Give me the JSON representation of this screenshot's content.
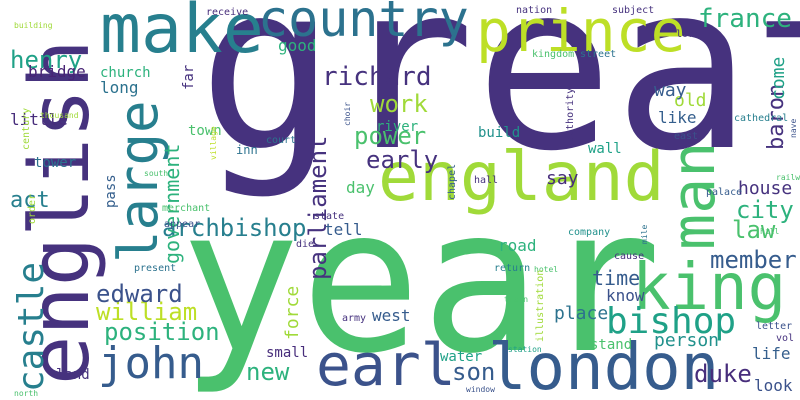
{
  "words": [
    {
      "text": "great",
      "color": "#46327e",
      "vertical": false
    },
    {
      "text": "year",
      "color": "#4ac16d",
      "vertical": false
    },
    {
      "text": "english",
      "color": "#46327e",
      "vertical": true
    },
    {
      "text": "make",
      "color": "#277f8e",
      "vertical": false
    },
    {
      "text": "country",
      "color": "#2c728e",
      "vertical": false
    },
    {
      "text": "england",
      "color": "#a0da39",
      "vertical": false
    },
    {
      "text": "london",
      "color": "#365c8d",
      "vertical": false
    },
    {
      "text": "king",
      "color": "#4ac16d",
      "vertical": false
    },
    {
      "text": "prince",
      "color": "#bddf26",
      "vertical": false
    },
    {
      "text": "man",
      "color": "#4ac16d",
      "vertical": true
    },
    {
      "text": "large",
      "color": "#277f8e",
      "vertical": true
    },
    {
      "text": "earl",
      "color": "#3b528b",
      "vertical": false
    },
    {
      "text": "bishop",
      "color": "#1fa187",
      "vertical": false
    },
    {
      "text": "castle",
      "color": "#277f8e",
      "vertical": true
    },
    {
      "text": "john",
      "color": "#365c8d",
      "vertical": false
    },
    {
      "text": "henry",
      "color": "#1fa187",
      "vertical": false
    },
    {
      "text": "france",
      "color": "#2db27d",
      "vertical": false
    },
    {
      "text": "richard",
      "color": "#46327e",
      "vertical": false
    },
    {
      "text": "archbishop",
      "color": "#277f8e",
      "vertical": false
    },
    {
      "text": "parliament",
      "color": "#46327e",
      "vertical": true
    },
    {
      "text": "government",
      "color": "#2db27d",
      "vertical": true
    },
    {
      "text": "william",
      "color": "#bddf26",
      "vertical": false
    },
    {
      "text": "edward",
      "color": "#3b528b",
      "vertical": false
    },
    {
      "text": "position",
      "color": "#2db27d",
      "vertical": false
    },
    {
      "text": "work",
      "color": "#a0da39",
      "vertical": false
    },
    {
      "text": "power",
      "color": "#4ac16d",
      "vertical": false
    },
    {
      "text": "early",
      "color": "#46327e",
      "vertical": false
    },
    {
      "text": "city",
      "color": "#2db27d",
      "vertical": false
    },
    {
      "text": "law",
      "color": "#4ac16d",
      "vertical": false
    },
    {
      "text": "baron",
      "color": "#46327e",
      "vertical": true
    },
    {
      "text": "come",
      "color": "#1fa187",
      "vertical": true
    },
    {
      "text": "member",
      "color": "#365c8d",
      "vertical": false
    },
    {
      "text": "duke",
      "color": "#472d7b",
      "vertical": false
    },
    {
      "text": "son",
      "color": "#365c8d",
      "vertical": false
    },
    {
      "text": "new",
      "color": "#2db27d",
      "vertical": false
    },
    {
      "text": "force",
      "color": "#a0da39",
      "vertical": true
    },
    {
      "text": "time",
      "color": "#365c8d",
      "vertical": false
    },
    {
      "text": "place",
      "color": "#2c728e",
      "vertical": false
    },
    {
      "text": "person",
      "color": "#21918c",
      "vertical": false
    },
    {
      "text": "house",
      "color": "#46327e",
      "vertical": false
    },
    {
      "text": "act",
      "color": "#277f8e",
      "vertical": false
    },
    {
      "text": "bridge",
      "color": "#482475",
      "vertical": false
    },
    {
      "text": "long",
      "color": "#2c728e",
      "vertical": false
    },
    {
      "text": "good",
      "color": "#2db27d",
      "vertical": false
    },
    {
      "text": "old",
      "color": "#a0da39",
      "vertical": false
    },
    {
      "text": "like",
      "color": "#355f8d",
      "vertical": false
    },
    {
      "text": "way",
      "color": "#365c8d",
      "vertical": false
    },
    {
      "text": "say",
      "color": "#472d7b",
      "vertical": false
    },
    {
      "text": "day",
      "color": "#4ac16d",
      "vertical": false
    },
    {
      "text": "tell",
      "color": "#365c8d",
      "vertical": false
    },
    {
      "text": "road",
      "color": "#2db27d",
      "vertical": false
    },
    {
      "text": "know",
      "color": "#3b528b",
      "vertical": false
    },
    {
      "text": "life",
      "color": "#355f8d",
      "vertical": false
    },
    {
      "text": "look",
      "color": "#3b528b",
      "vertical": false
    },
    {
      "text": "stand",
      "color": "#4ac16d",
      "vertical": false
    },
    {
      "text": "west",
      "color": "#365c8d",
      "vertical": false
    },
    {
      "text": "small",
      "color": "#472d7b",
      "vertical": false
    },
    {
      "text": "water",
      "color": "#1fa187",
      "vertical": false
    },
    {
      "text": "land",
      "color": "#46327e",
      "vertical": false
    },
    {
      "text": "little",
      "color": "#472d7b",
      "vertical": false
    },
    {
      "text": "church",
      "color": "#2db27d",
      "vertical": false
    },
    {
      "text": "town",
      "color": "#4ac16d",
      "vertical": false
    },
    {
      "text": "tower",
      "color": "#2c728e",
      "vertical": false
    },
    {
      "text": "pass",
      "color": "#355f8d",
      "vertical": true
    },
    {
      "text": "far",
      "color": "#46327e",
      "vertical": true
    },
    {
      "text": "river",
      "color": "#2db27d",
      "vertical": false
    },
    {
      "text": "build",
      "color": "#21918c",
      "vertical": false
    },
    {
      "text": "wall",
      "color": "#1fa187",
      "vertical": false
    },
    {
      "text": "inn",
      "color": "#2c728e",
      "vertical": false
    },
    {
      "text": "court",
      "color": "#2c728e",
      "vertical": false
    },
    {
      "text": "hall",
      "color": "#46327e",
      "vertical": false
    },
    {
      "text": "state",
      "color": "#46327e",
      "vertical": false
    },
    {
      "text": "die",
      "color": "#46327e",
      "vertical": false
    },
    {
      "text": "cause",
      "color": "#46327e",
      "vertical": false
    },
    {
      "text": "palace",
      "color": "#365c8d",
      "vertical": false
    },
    {
      "text": "present",
      "color": "#2c728e",
      "vertical": false
    },
    {
      "text": "return",
      "color": "#277f8e",
      "vertical": false
    },
    {
      "text": "company",
      "color": "#21918c",
      "vertical": false
    },
    {
      "text": "appear",
      "color": "#3b528b",
      "vertical": false
    },
    {
      "text": "merchant",
      "color": "#4ac16d",
      "vertical": false
    },
    {
      "text": "receive",
      "color": "#472d7b",
      "vertical": false
    },
    {
      "text": "nation",
      "color": "#46327e",
      "vertical": false
    },
    {
      "text": "subject",
      "color": "#46327e",
      "vertical": false
    },
    {
      "text": "street",
      "color": "#2c728e",
      "vertical": false
    },
    {
      "text": "lord",
      "color": "#46327e",
      "vertical": false
    },
    {
      "text": "kingdom",
      "color": "#4ac16d",
      "vertical": false
    },
    {
      "text": "east",
      "color": "#3b528b",
      "vertical": false
    },
    {
      "text": "cathedral",
      "color": "#277f8e",
      "vertical": false
    },
    {
      "text": "authority",
      "color": "#46327e",
      "vertical": true
    },
    {
      "text": "chapel",
      "color": "#355f8d",
      "vertical": true
    },
    {
      "text": "choir",
      "color": "#3b528b",
      "vertical": true
    },
    {
      "text": "building",
      "color": "#a0da39",
      "vertical": false
    },
    {
      "text": "thousand",
      "color": "#a0da39",
      "vertical": false
    },
    {
      "text": "century",
      "color": "#a0da39",
      "vertical": true
    },
    {
      "text": "order",
      "color": "#a0da39",
      "vertical": true
    },
    {
      "text": "north",
      "color": "#4ac16d",
      "vertical": false
    },
    {
      "text": "south",
      "color": "#4ac16d",
      "vertical": false
    },
    {
      "text": "village",
      "color": "#bddf26",
      "vertical": true
    },
    {
      "text": "hotel",
      "color": "#4ac16d",
      "vertical": false
    },
    {
      "text": "train",
      "color": "#4ac16d",
      "vertical": false
    },
    {
      "text": "illustration",
      "color": "#a0da39",
      "vertical": true
    },
    {
      "text": "station",
      "color": "#1fa187",
      "vertical": false
    },
    {
      "text": "window",
      "color": "#3b528b",
      "vertical": false
    },
    {
      "text": "army",
      "color": "#46327e",
      "vertical": false
    },
    {
      "text": "letter",
      "color": "#3b528b",
      "vertical": false
    },
    {
      "text": "vol",
      "color": "#46327e",
      "vertical": false
    },
    {
      "text": "nave",
      "color": "#3b528b",
      "vertical": true
    },
    {
      "text": "railway",
      "color": "#4ac16d",
      "vertical": false
    },
    {
      "text": "mile",
      "color": "#2c728e",
      "vertical": true
    },
    {
      "text": "hill",
      "color": "#4ac16d",
      "vertical": false
    }
  ]
}
